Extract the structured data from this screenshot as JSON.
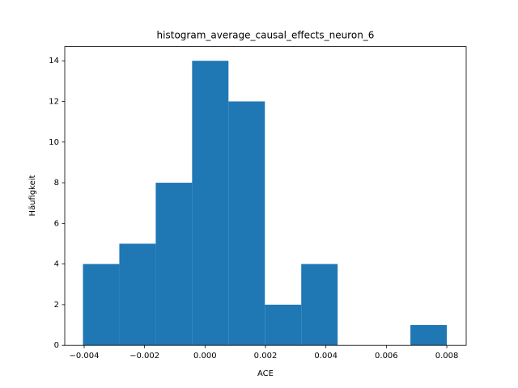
{
  "chart_data": {
    "type": "histogram",
    "title": "histogram_average_causal_effects_neuron_6",
    "x_label": "ACE",
    "y_label": "Häufigkeit",
    "bins": [
      -0.00404,
      -0.002836,
      -0.001632,
      -0.000428,
      0.000776,
      0.00198,
      0.003184,
      0.004388,
      0.005592,
      0.006796,
      0.008
    ],
    "values": [
      4,
      5,
      8,
      14,
      12,
      2,
      4,
      0,
      0,
      1
    ],
    "color": "#1f77b4",
    "xlim": [
      -0.004642,
      0.008642
    ],
    "xticks": [
      {
        "value": -0.004,
        "label": "−0.004"
      },
      {
        "value": -0.002,
        "label": "−0.002"
      },
      {
        "value": 0,
        "label": "0.000"
      },
      0.002,
      0.004,
      0.006,
      0.008
    ],
    "ylim": [
      0,
      14.7
    ],
    "yticks": [
      0,
      2,
      4,
      6,
      8,
      10,
      12,
      14
    ]
  }
}
